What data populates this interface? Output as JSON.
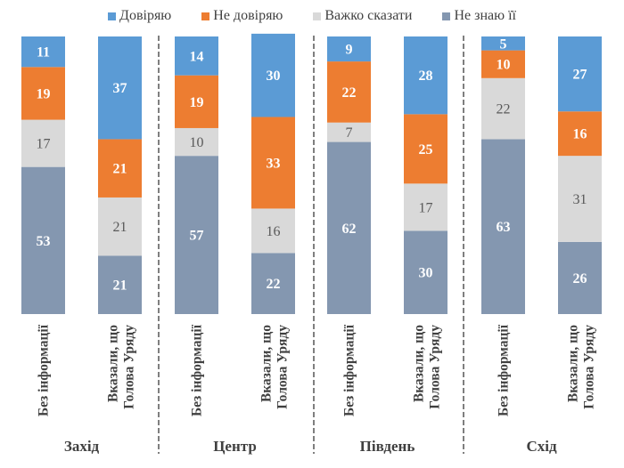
{
  "chart_data": {
    "type": "bar",
    "stacked": true,
    "percent": true,
    "title": "",
    "xlabel": "",
    "ylabel": "",
    "ylim": [
      0,
      100
    ],
    "grid": false,
    "legend_position": "top",
    "series": [
      {
        "name": "Довіряю",
        "color": "#5B9BD5",
        "label_color": "#ffffff",
        "label_bold": true,
        "values": [
          11,
          37,
          14,
          30,
          9,
          28,
          5,
          27
        ]
      },
      {
        "name": "Не довіряю",
        "color": "#ED7D31",
        "label_color": "#ffffff",
        "label_bold": true,
        "values": [
          19,
          21,
          19,
          33,
          22,
          25,
          10,
          16
        ]
      },
      {
        "name": "Важко сказати",
        "color": "#D9D9D9",
        "label_color": "#595959",
        "label_bold": false,
        "values": [
          17,
          21,
          10,
          16,
          7,
          17,
          22,
          31
        ]
      },
      {
        "name": "Не знаю її",
        "color": "#8497B0",
        "label_color": "#ffffff",
        "label_bold": true,
        "values": [
          53,
          21,
          57,
          22,
          62,
          30,
          63,
          26
        ]
      }
    ],
    "categories": [
      [
        "Без інформації"
      ],
      [
        "Вказали, що",
        "Голова Уряду"
      ],
      [
        "Без інформації"
      ],
      [
        "Вказали, що",
        "Голова Уряду"
      ],
      [
        "Без інформації"
      ],
      [
        "Вказали, що",
        "Голова Уряду"
      ],
      [
        "Без інформації"
      ],
      [
        "Вказали, що",
        "Голова Уряду"
      ]
    ],
    "groups": [
      {
        "label": "Захід",
        "categories": [
          0,
          1
        ]
      },
      {
        "label": "Центр",
        "categories": [
          2,
          3
        ]
      },
      {
        "label": "Південь",
        "categories": [
          4,
          5
        ]
      },
      {
        "label": "Схід",
        "categories": [
          6,
          7
        ]
      }
    ],
    "stack_order": "Не знаю її at bottom, Довіряю at top"
  },
  "legend": {
    "items": [
      {
        "label": "Довіряю",
        "color": "#5B9BD5"
      },
      {
        "label": "Не довіряю",
        "color": "#ED7D31"
      },
      {
        "label": "Важко сказати",
        "color": "#D9D9D9"
      },
      {
        "label": "Не знаю її",
        "color": "#8497B0"
      }
    ]
  },
  "colors": {
    "text": "#404040",
    "divider": "#7F7F7F"
  }
}
